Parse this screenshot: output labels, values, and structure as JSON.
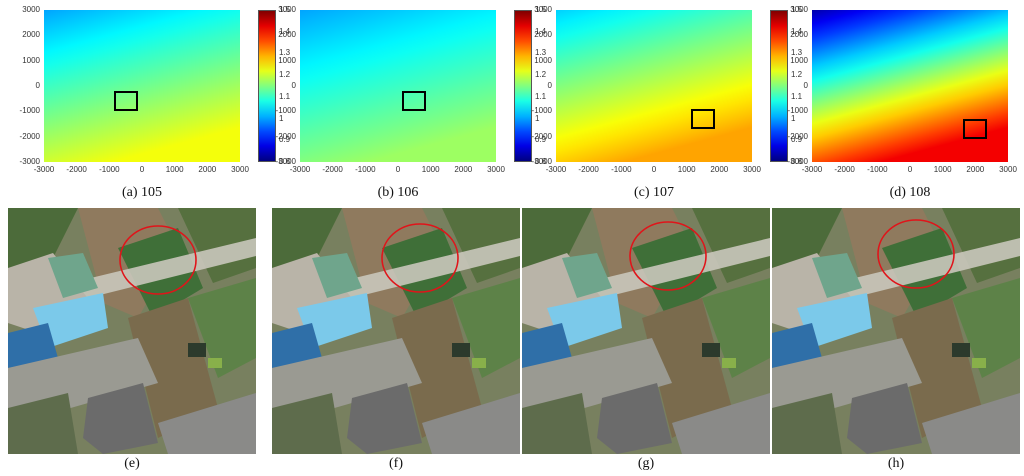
{
  "chart_data": [
    {
      "type": "heatmap",
      "caption": "(a) 105",
      "x_ticks": [
        "-3000",
        "-2000",
        "-1000",
        "0",
        "1000",
        "2000",
        "3000"
      ],
      "y_ticks": [
        "3000",
        "2000",
        "1000",
        "0",
        "-1000",
        "-2000",
        "-3000"
      ],
      "xlim": [
        -3000,
        3000
      ],
      "ylim": [
        -3000,
        3000
      ],
      "colorbar": {
        "ticks": [
          "1.5",
          "1.4",
          "1.3",
          "1.2",
          "1.1",
          "1",
          "0.9",
          "0.8"
        ],
        "range": [
          0.8,
          1.5
        ]
      },
      "value_top_left": 1.0,
      "value_bottom_right": 1.23,
      "roi_box_center": [
        -500,
        -600
      ]
    },
    {
      "type": "heatmap",
      "caption": "(b) 106",
      "x_ticks": [
        "-3000",
        "-2000",
        "-1000",
        "0",
        "1000",
        "2000",
        "3000"
      ],
      "y_ticks": [
        "3000",
        "2000",
        "1000",
        "0",
        "-1000",
        "-2000",
        "-3000"
      ],
      "xlim": [
        -3000,
        3000
      ],
      "ylim": [
        -3000,
        3000
      ],
      "colorbar": {
        "ticks": [
          "1.5",
          "1.4",
          "1.3",
          "1.2",
          "1.1",
          "1",
          "0.9",
          "0.8"
        ],
        "range": [
          0.8,
          1.5
        ]
      },
      "value_top_left": 1.0,
      "value_bottom_right": 1.17,
      "roi_box_center": [
        500,
        -600
      ]
    },
    {
      "type": "heatmap",
      "caption": "(c) 107",
      "x_ticks": [
        "-3000",
        "-2000",
        "-1000",
        "0",
        "1000",
        "2000",
        "3000"
      ],
      "y_ticks": [
        "3000",
        "2000",
        "1000",
        "0",
        "-1000",
        "-2000",
        "-3000"
      ],
      "xlim": [
        -3000,
        3000
      ],
      "ylim": [
        -3000,
        3000
      ],
      "colorbar": {
        "ticks": [
          "1.5",
          "1.4",
          "1.3",
          "1.2",
          "1.1",
          "1",
          "0.9",
          "0.8"
        ],
        "range": [
          0.8,
          1.5
        ]
      },
      "value_top_left": 1.03,
      "value_bottom_right": 1.3,
      "roi_box_center": [
        1500,
        -1300
      ]
    },
    {
      "type": "heatmap",
      "caption": "(d) 108",
      "x_ticks": [
        "-3000",
        "-2000",
        "-1000",
        "0",
        "1000",
        "2000",
        "3000"
      ],
      "y_ticks": [
        "3000",
        "2000",
        "1000",
        "0",
        "-1000",
        "-2000",
        "-3000"
      ],
      "xlim": [
        -3000,
        3000
      ],
      "ylim": [
        -3000,
        3000
      ],
      "colorbar": {
        "ticks": [
          "1.5",
          "1.4",
          "1.3",
          "1.2",
          "1.1",
          "1",
          "0.9",
          "0.8"
        ],
        "range": [
          0.8,
          1.5
        ]
      },
      "value_top_left": 0.83,
      "value_bottom_right": 1.42,
      "roi_box_center": [
        2000,
        -1700
      ]
    }
  ],
  "photos": [
    {
      "caption": "(e)"
    },
    {
      "caption": "(f)"
    },
    {
      "caption": "(g)"
    },
    {
      "caption": "(h)"
    }
  ]
}
